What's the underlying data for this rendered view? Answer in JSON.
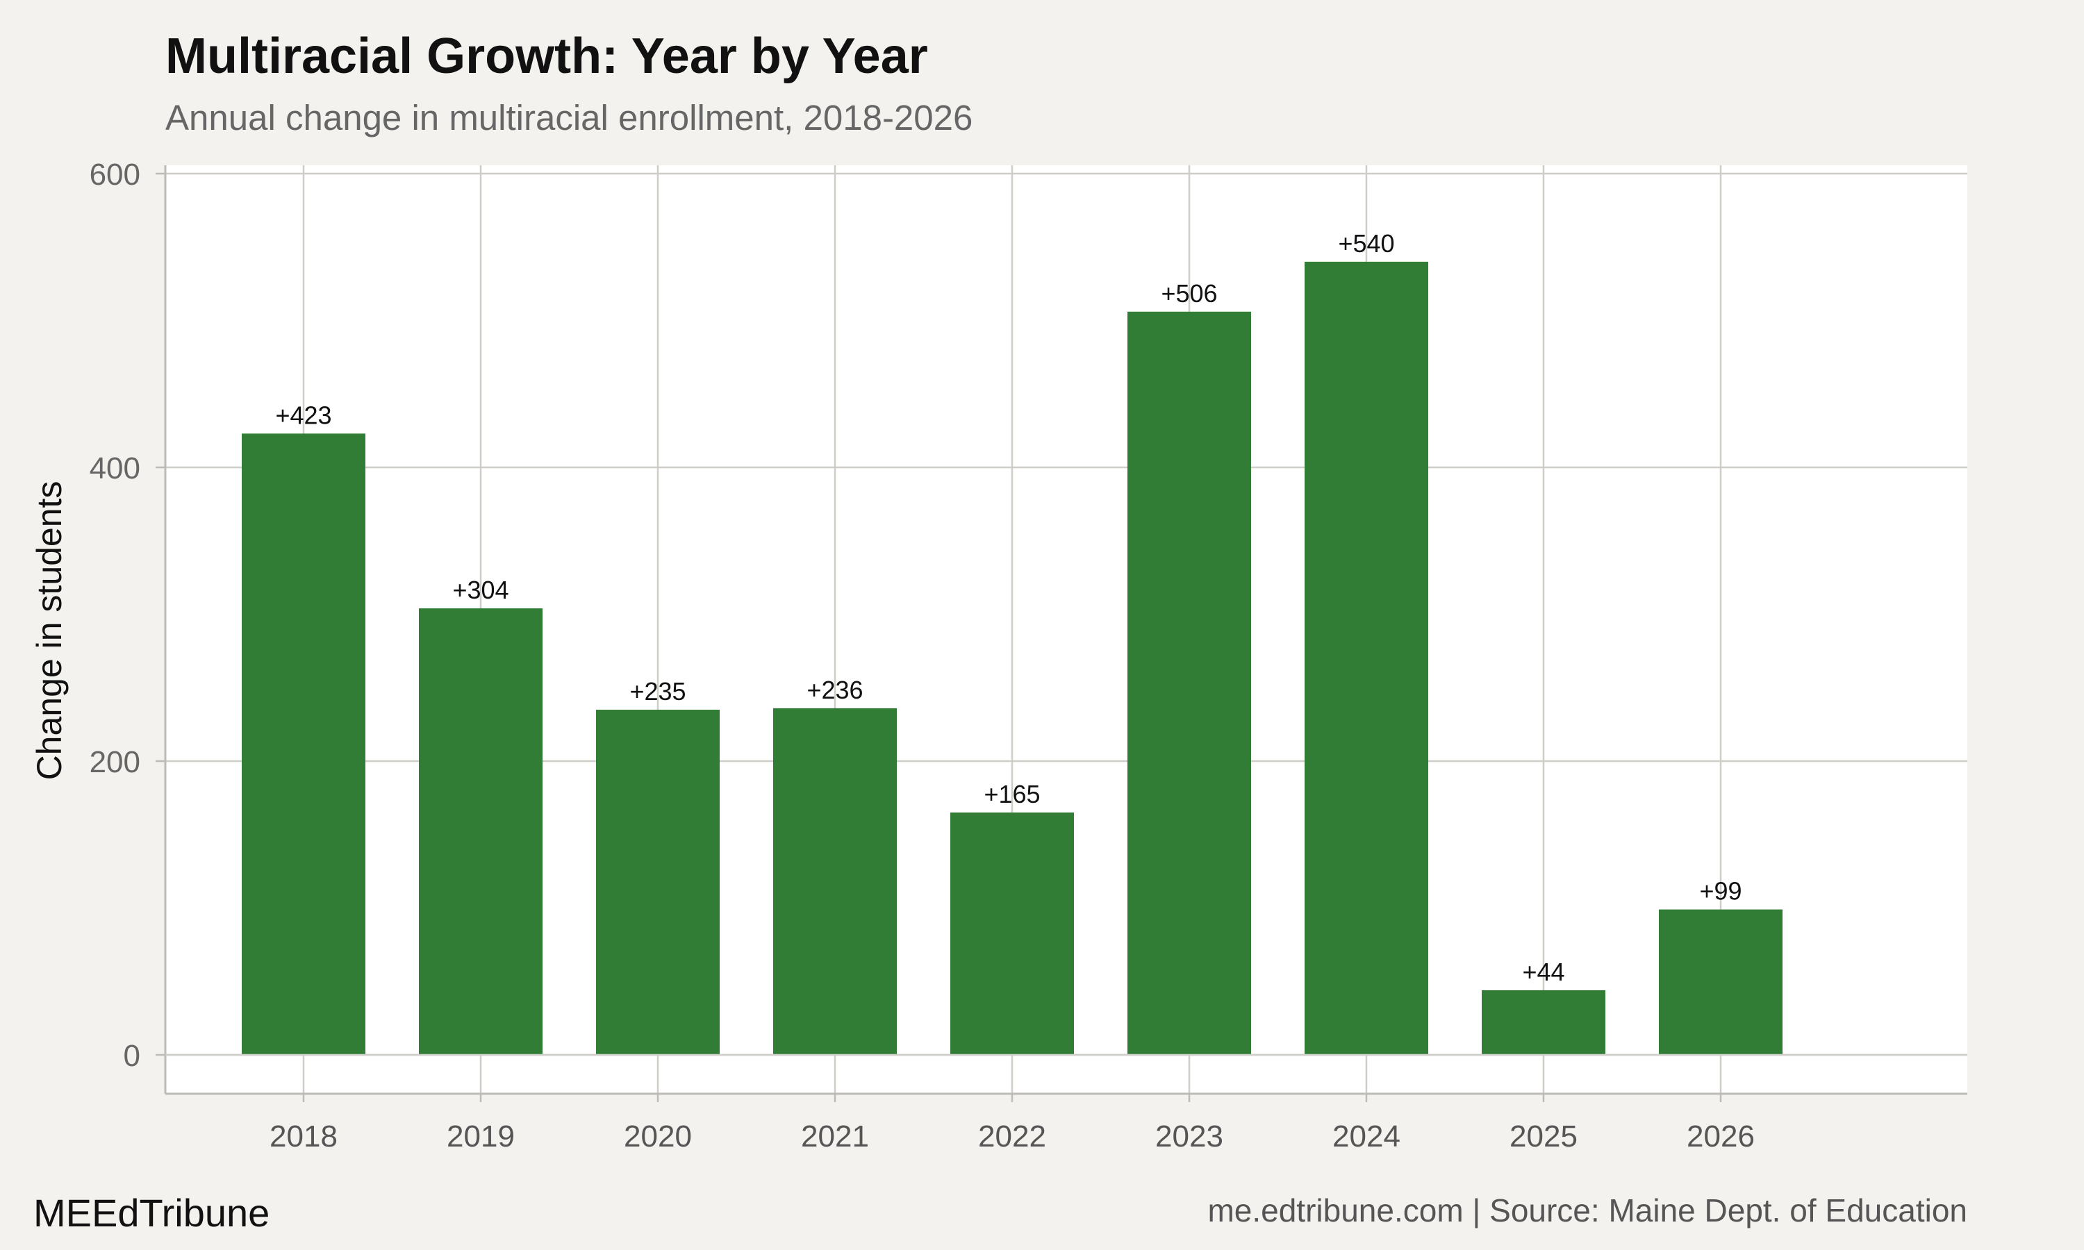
{
  "chart_data": {
    "type": "bar",
    "title": "Multiracial Growth: Year by Year",
    "subtitle": "Annual change in multiracial enrollment, 2018-2026",
    "xlabel": "",
    "ylabel": "Change in students",
    "categories": [
      "2018",
      "2019",
      "2020",
      "2021",
      "2022",
      "2023",
      "2024",
      "2025",
      "2026"
    ],
    "values": [
      423,
      304,
      235,
      236,
      165,
      506,
      540,
      44,
      99
    ],
    "data_labels": [
      "+423",
      "+304",
      "+235",
      "+236",
      "+165",
      "+506",
      "+540",
      "+44",
      "+99"
    ],
    "ylim": [
      0,
      600
    ],
    "yticks": [
      0,
      200,
      400,
      600
    ],
    "grid": true,
    "legend": "none",
    "bar_color": "#317d35"
  },
  "footer": {
    "brand": "MEEdTribune",
    "source": "me.edtribune.com | Source: Maine Dept. of Education"
  }
}
